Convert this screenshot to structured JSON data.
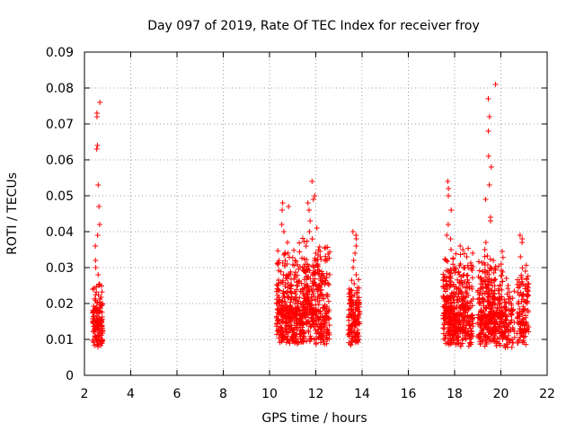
{
  "chart_data": {
    "type": "scatter",
    "title": "Day 097 of 2019, Rate Of TEC Index for receiver froy",
    "xlabel": "GPS time / hours",
    "ylabel": "ROTI / TECUs",
    "xlim": [
      2,
      22
    ],
    "ylim": [
      0,
      0.09
    ],
    "x_ticks": [
      2,
      4,
      6,
      8,
      10,
      12,
      14,
      16,
      18,
      20,
      22
    ],
    "y_ticks": [
      0,
      0.01,
      0.02,
      0.03,
      0.04,
      0.05,
      0.06,
      0.07,
      0.08,
      0.09
    ],
    "x_tick_labels": [
      "2",
      "4",
      "6",
      "8",
      "10",
      "12",
      "14",
      "16",
      "18",
      "20",
      "22"
    ],
    "y_tick_labels": [
      "0",
      "0.01",
      "0.02",
      "0.03",
      "0.04",
      "0.05",
      "0.06",
      "0.07",
      "0.08",
      "0.09"
    ],
    "grid": true,
    "marker": "+",
    "color": "#ff0000",
    "clusters": [
      {
        "x_range": [
          2.35,
          2.8
        ],
        "n": 140,
        "y_base": 0.009,
        "y_spread": 0.007,
        "peaks": [
          0.076,
          0.073,
          0.072,
          0.064,
          0.063,
          0.053,
          0.047,
          0.042,
          0.039,
          0.036,
          0.032,
          0.03,
          0.028,
          0.025
        ]
      },
      {
        "x_range": [
          10.3,
          11.0
        ],
        "n": 220,
        "y_base": 0.011,
        "y_spread": 0.012,
        "peaks": [
          0.048,
          0.047,
          0.046,
          0.042,
          0.04,
          0.037,
          0.034,
          0.031,
          0.028
        ]
      },
      {
        "x_range": [
          11.0,
          12.6
        ],
        "n": 480,
        "y_base": 0.011,
        "y_spread": 0.013,
        "peaks": [
          0.054,
          0.05,
          0.049,
          0.048,
          0.046,
          0.043,
          0.041,
          0.04,
          0.038,
          0.036,
          0.034,
          0.033
        ]
      },
      {
        "x_range": [
          13.4,
          13.9
        ],
        "n": 140,
        "y_base": 0.01,
        "y_spread": 0.008,
        "peaks": [
          0.04,
          0.039,
          0.038,
          0.036,
          0.034,
          0.032,
          0.03,
          0.028
        ]
      },
      {
        "x_range": [
          17.5,
          18.0
        ],
        "n": 200,
        "y_base": 0.011,
        "y_spread": 0.011,
        "peaks": [
          0.054,
          0.052,
          0.05,
          0.046,
          0.042,
          0.039,
          0.038,
          0.035,
          0.032
        ]
      },
      {
        "x_range": [
          18.0,
          18.8
        ],
        "n": 240,
        "y_base": 0.01,
        "y_spread": 0.012,
        "peaks": [
          0.036,
          0.035,
          0.033,
          0.031,
          0.03,
          0.028,
          0.026
        ]
      },
      {
        "x_range": [
          19.0,
          20.1
        ],
        "n": 360,
        "y_base": 0.01,
        "y_spread": 0.012,
        "peaks": [
          0.081,
          0.077,
          0.072,
          0.068,
          0.061,
          0.058,
          0.053,
          0.049,
          0.044,
          0.043,
          0.037,
          0.035
        ]
      },
      {
        "x_range": [
          20.1,
          20.6
        ],
        "n": 80,
        "y_base": 0.009,
        "y_spread": 0.007,
        "peaks": [
          0.027,
          0.025,
          0.022,
          0.018
        ]
      },
      {
        "x_range": [
          20.7,
          21.2
        ],
        "n": 120,
        "y_base": 0.01,
        "y_spread": 0.009,
        "peaks": [
          0.039,
          0.038,
          0.037,
          0.033,
          0.029,
          0.025
        ]
      }
    ]
  }
}
